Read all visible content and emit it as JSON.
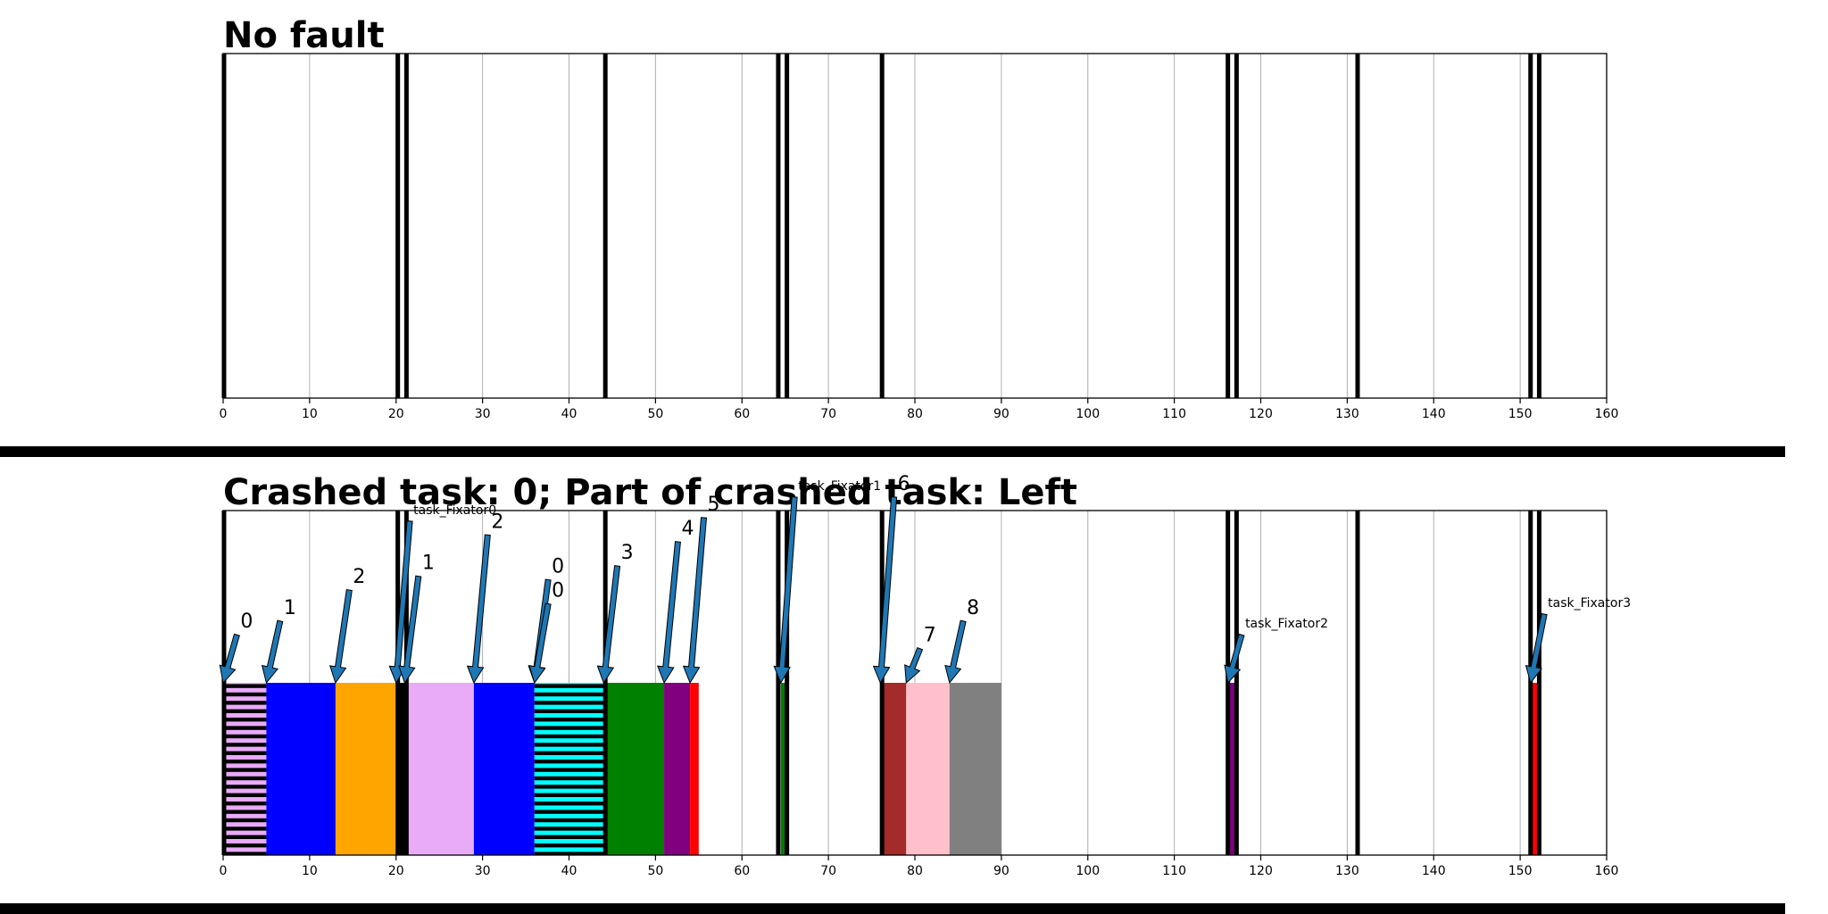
{
  "colors": {
    "background": "#ffffff",
    "frame": "#000000",
    "grid": "#b0b0b0",
    "arrow": "#1f77b4",
    "separator": "#000000"
  },
  "chart_data": [
    {
      "type": "gantt",
      "title": "No fault",
      "xlim": [
        0,
        160
      ],
      "xticks": [
        0,
        10,
        20,
        30,
        40,
        50,
        60,
        70,
        80,
        90,
        100,
        110,
        120,
        130,
        140,
        150,
        160
      ],
      "grid": "vertical",
      "boundaries": [
        0.1,
        20.2,
        21.2,
        44.2,
        64.2,
        65.2,
        76.2,
        116.2,
        117.2,
        131.2,
        151.2,
        152.2
      ],
      "segments": [],
      "annotations": []
    },
    {
      "type": "gantt",
      "title": "Crashed task: 0; Part of crashed task: Left",
      "xlim": [
        0,
        160
      ],
      "xticks": [
        0,
        10,
        20,
        30,
        40,
        50,
        60,
        70,
        80,
        90,
        100,
        110,
        120,
        130,
        140,
        150,
        160
      ],
      "grid": "vertical",
      "boundaries": [
        0.1,
        20.2,
        21.2,
        44.2,
        64.2,
        65.2,
        76.2,
        116.2,
        117.2,
        131.2,
        151.2,
        152.2
      ],
      "segments": [
        {
          "start": 0,
          "end": 5,
          "color": "#e9aaf8",
          "hatch": "black"
        },
        {
          "start": 5,
          "end": 13,
          "color": "#0000ff"
        },
        {
          "start": 13,
          "end": 20,
          "color": "#ffa500"
        },
        {
          "start": 20,
          "end": 21,
          "color": "#000000"
        },
        {
          "start": 21,
          "end": 29,
          "color": "#e9aaf8"
        },
        {
          "start": 29,
          "end": 36,
          "color": "#0000ff"
        },
        {
          "start": 36,
          "end": 44,
          "color": "#00ffff",
          "hatch": "black"
        },
        {
          "start": 44,
          "end": 51,
          "color": "#008000"
        },
        {
          "start": 51,
          "end": 54,
          "color": "#800080"
        },
        {
          "start": 54,
          "end": 55,
          "color": "#ff0000"
        },
        {
          "start": 64.5,
          "end": 65.2,
          "color": "#008000"
        },
        {
          "start": 76,
          "end": 79,
          "color": "#a52a2a"
        },
        {
          "start": 79,
          "end": 84,
          "color": "#ffc0cb"
        },
        {
          "start": 84,
          "end": 90,
          "color": "#808080"
        },
        {
          "start": 116.2,
          "end": 117,
          "color": "#800080"
        },
        {
          "start": 151.2,
          "end": 152.2,
          "color": "#ff0000"
        }
      ],
      "annotations": [
        {
          "label": "0",
          "x": 0,
          "text_x": 2,
          "style": "num",
          "level": 0.66
        },
        {
          "label": "1",
          "x": 5,
          "text_x": 7,
          "style": "num",
          "level": 0.7
        },
        {
          "label": "2",
          "x": 13,
          "text_x": 15,
          "style": "num",
          "level": 0.79
        },
        {
          "label": "task_Fixator0",
          "x": 20,
          "text_x": 22,
          "style": "txt",
          "level": 0.99
        },
        {
          "label": "1",
          "x": 21,
          "text_x": 23,
          "style": "num",
          "level": 0.83
        },
        {
          "label": "2",
          "x": 29,
          "text_x": 31,
          "style": "num",
          "level": 0.95
        },
        {
          "label": "0",
          "x": 36,
          "text_x": 38,
          "style": "num",
          "level": 0.82
        },
        {
          "label": "0",
          "x": 36,
          "text_x": 38,
          "style": "num",
          "level": 0.75
        },
        {
          "label": "3",
          "x": 44,
          "text_x": 46,
          "style": "num",
          "level": 0.86
        },
        {
          "label": "4",
          "x": 51,
          "text_x": 53,
          "style": "num",
          "level": 0.93
        },
        {
          "label": "5",
          "x": 54,
          "text_x": 56,
          "style": "num",
          "level": 1.0
        },
        {
          "label": "task_Fixator1",
          "x": 64.5,
          "text_x": 66.5,
          "style": "txt",
          "level": 1.06
        },
        {
          "label": "6",
          "x": 76,
          "text_x": 78,
          "style": "num",
          "level": 1.06
        },
        {
          "label": "7",
          "x": 79,
          "text_x": 81,
          "style": "num",
          "level": 0.62
        },
        {
          "label": "8",
          "x": 84,
          "text_x": 86,
          "style": "num",
          "level": 0.7
        },
        {
          "label": "task_Fixator2",
          "x": 116.2,
          "text_x": 118.2,
          "style": "txt",
          "level": 0.66
        },
        {
          "label": "task_Fixator3",
          "x": 151.2,
          "text_x": 153.2,
          "style": "txt",
          "level": 0.72
        }
      ]
    }
  ]
}
